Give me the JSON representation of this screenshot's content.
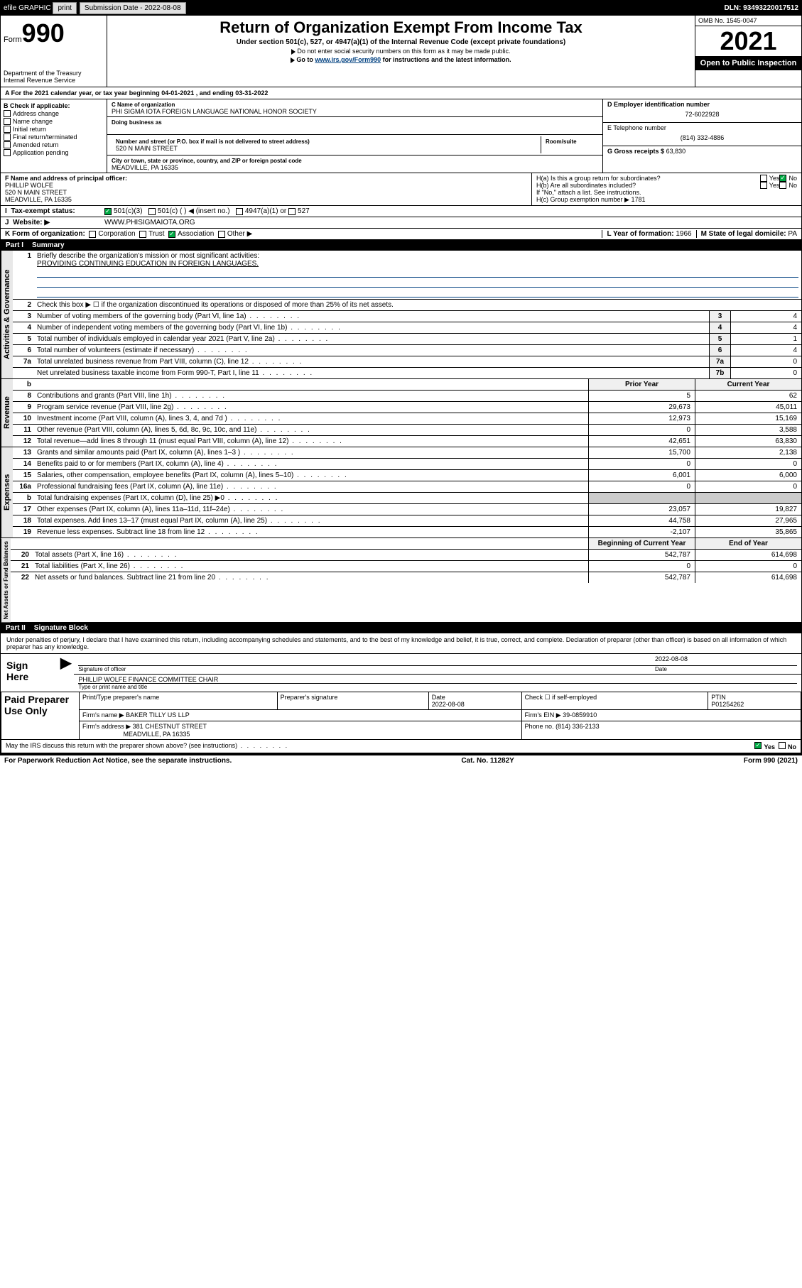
{
  "topbar": {
    "efile": "efile GRAPHIC",
    "print": "print",
    "subdate_label": "Submission Date - 2022-08-08",
    "dln": "DLN: 93493220017512"
  },
  "header": {
    "form_label": "Form",
    "form_num": "990",
    "dept": "Department of the Treasury",
    "irs": "Internal Revenue Service",
    "title": "Return of Organization Exempt From Income Tax",
    "sub": "Under section 501(c), 527, or 4947(a)(1) of the Internal Revenue Code (except private foundations)",
    "inst1": "Do not enter social security numbers on this form as it may be made public.",
    "inst2_pre": "Go to ",
    "inst2_link": "www.irs.gov/Form990",
    "inst2_post": " for instructions and the latest information.",
    "omb": "OMB No. 1545-0047",
    "year": "2021",
    "open": "Open to Public Inspection"
  },
  "period": "For the 2021 calendar year, or tax year beginning 04-01-2021    , and ending 03-31-2022",
  "boxB": {
    "label": "B Check if applicable:",
    "items": [
      "Address change",
      "Name change",
      "Initial return",
      "Final return/terminated",
      "Amended return",
      "Application pending"
    ]
  },
  "boxC": {
    "name_label": "C Name of organization",
    "name": "PHI SIGMA IOTA FOREIGN LANGUAGE NATIONAL HONOR SOCIETY",
    "dba_label": "Doing business as",
    "street_label": "Number and street (or P.O. box if mail is not delivered to street address)",
    "room_label": "Room/suite",
    "street": "520 N MAIN STREET",
    "city_label": "City or town, state or province, country, and ZIP or foreign postal code",
    "city": "MEADVILLE, PA  16335"
  },
  "boxD": {
    "label": "D Employer identification number",
    "val": "72-6022928"
  },
  "boxE": {
    "label": "E Telephone number",
    "val": "(814) 332-4886"
  },
  "boxG": {
    "label": "G Gross receipts $",
    "val": "63,830"
  },
  "boxF": {
    "label": "F Name and address of principal officer:",
    "name": "PHILLIP WOLFE",
    "addr1": "520 N MAIN STREET",
    "addr2": "MEADVILLE, PA  16335"
  },
  "boxH": {
    "a": "H(a)  Is this a group return for subordinates?",
    "b": "H(b)  Are all subordinates included?",
    "b2": "If \"No,\" attach a list. See instructions.",
    "c": "H(c)  Group exemption number ▶   1781",
    "yes": "Yes",
    "no": "No"
  },
  "rowI": {
    "label": "Tax-exempt status:",
    "opts": [
      "501(c)(3)",
      "501(c) (  ) ◀ (insert no.)",
      "4947(a)(1) or",
      "527"
    ]
  },
  "rowJ": {
    "label": "Website: ▶",
    "val": "WWW.PHISIGMAIOTA.ORG"
  },
  "rowK": {
    "label": "K Form of organization:",
    "opts": [
      "Corporation",
      "Trust",
      "Association",
      "Other ▶"
    ],
    "checked": 2
  },
  "rowL": {
    "label": "L Year of formation:",
    "val": "1966"
  },
  "rowM": {
    "label": "M State of legal domicile:",
    "val": "PA"
  },
  "part1": {
    "num": "Part I",
    "title": "Summary"
  },
  "summary": {
    "l1_label": "Briefly describe the organization's mission or most significant activities:",
    "l1_text": "PROVIDING CONTINUING EDUCATION IN FOREIGN LANGUAGES.",
    "l2": "Check this box ▶ ☐  if the organization discontinued its operations or disposed of more than 25% of its net assets."
  },
  "gov_lines": [
    {
      "n": "3",
      "t": "Number of voting members of the governing body (Part VI, line 1a)",
      "box": "3",
      "v": "4"
    },
    {
      "n": "4",
      "t": "Number of independent voting members of the governing body (Part VI, line 1b)",
      "box": "4",
      "v": "4"
    },
    {
      "n": "5",
      "t": "Total number of individuals employed in calendar year 2021 (Part V, line 2a)",
      "box": "5",
      "v": "1"
    },
    {
      "n": "6",
      "t": "Total number of volunteers (estimate if necessary)",
      "box": "6",
      "v": "4"
    },
    {
      "n": "7a",
      "t": "Total unrelated business revenue from Part VIII, column (C), line 12",
      "box": "7a",
      "v": "0"
    },
    {
      "n": "",
      "t": "Net unrelated business taxable income from Form 990-T, Part I, line 11",
      "box": "7b",
      "v": "0"
    }
  ],
  "pycy_header": {
    "py": "Prior Year",
    "cy": "Current Year",
    "b": "b"
  },
  "rev_lines": [
    {
      "n": "8",
      "t": "Contributions and grants (Part VIII, line 1h)",
      "py": "5",
      "cy": "62"
    },
    {
      "n": "9",
      "t": "Program service revenue (Part VIII, line 2g)",
      "py": "29,673",
      "cy": "45,011"
    },
    {
      "n": "10",
      "t": "Investment income (Part VIII, column (A), lines 3, 4, and 7d )",
      "py": "12,973",
      "cy": "15,169"
    },
    {
      "n": "11",
      "t": "Other revenue (Part VIII, column (A), lines 5, 6d, 8c, 9c, 10c, and 11e)",
      "py": "0",
      "cy": "3,588"
    },
    {
      "n": "12",
      "t": "Total revenue—add lines 8 through 11 (must equal Part VIII, column (A), line 12)",
      "py": "42,651",
      "cy": "63,830"
    }
  ],
  "exp_lines": [
    {
      "n": "13",
      "t": "Grants and similar amounts paid (Part IX, column (A), lines 1–3 )",
      "py": "15,700",
      "cy": "2,138"
    },
    {
      "n": "14",
      "t": "Benefits paid to or for members (Part IX, column (A), line 4)",
      "py": "0",
      "cy": "0"
    },
    {
      "n": "15",
      "t": "Salaries, other compensation, employee benefits (Part IX, column (A), lines 5–10)",
      "py": "6,001",
      "cy": "6,000"
    },
    {
      "n": "16a",
      "t": "Professional fundraising fees (Part IX, column (A), line 11e)",
      "py": "0",
      "cy": "0"
    },
    {
      "n": "b",
      "t": "Total fundraising expenses (Part IX, column (D), line 25) ▶0",
      "py": "",
      "cy": "",
      "shaded": true
    },
    {
      "n": "17",
      "t": "Other expenses (Part IX, column (A), lines 11a–11d, 11f–24e)",
      "py": "23,057",
      "cy": "19,827"
    },
    {
      "n": "18",
      "t": "Total expenses. Add lines 13–17 (must equal Part IX, column (A), line 25)",
      "py": "44,758",
      "cy": "27,965"
    },
    {
      "n": "19",
      "t": "Revenue less expenses. Subtract line 18 from line 12",
      "py": "-2,107",
      "cy": "35,865"
    }
  ],
  "na_header": {
    "py": "Beginning of Current Year",
    "cy": "End of Year"
  },
  "na_lines": [
    {
      "n": "20",
      "t": "Total assets (Part X, line 16)",
      "py": "542,787",
      "cy": "614,698"
    },
    {
      "n": "21",
      "t": "Total liabilities (Part X, line 26)",
      "py": "0",
      "cy": "0"
    },
    {
      "n": "22",
      "t": "Net assets or fund balances. Subtract line 21 from line 20",
      "py": "542,787",
      "cy": "614,698"
    }
  ],
  "tabs": {
    "gov": "Activities & Governance",
    "rev": "Revenue",
    "exp": "Expenses",
    "na": "Net Assets or Fund Balances"
  },
  "part2": {
    "num": "Part II",
    "title": "Signature Block"
  },
  "sig": {
    "decl": "Under penalties of perjury, I declare that I have examined this return, including accompanying schedules and statements, and to the best of my knowledge and belief, it is true, correct, and complete. Declaration of preparer (other than officer) is based on all information of which preparer has any knowledge.",
    "sign_here": "Sign Here",
    "sig_officer": "Signature of officer",
    "date": "Date",
    "date_val": "2022-08-08",
    "name_title": "PHILLIP WOLFE  FINANCE COMMITTEE CHAIR",
    "name_title_label": "Type or print name and title"
  },
  "paid": {
    "label": "Paid Preparer Use Only",
    "h1": "Print/Type preparer's name",
    "h2": "Preparer's signature",
    "h3": "Date",
    "h3v": "2022-08-08",
    "h4": "Check ☐ if self-employed",
    "h5": "PTIN",
    "h5v": "P01254262",
    "firm_name_l": "Firm's name   ▶",
    "firm_name": "BAKER TILLY US LLP",
    "firm_ein_l": "Firm's EIN ▶",
    "firm_ein": "39-0859910",
    "firm_addr_l": "Firm's address ▶",
    "firm_addr1": "381 CHESTNUT STREET",
    "firm_addr2": "MEADVILLE, PA  16335",
    "phone_l": "Phone no.",
    "phone": "(814) 336-2133"
  },
  "discuss": "May the IRS discuss this return with the preparer shown above? (see instructions)",
  "footer": {
    "pra": "For Paperwork Reduction Act Notice, see the separate instructions.",
    "cat": "Cat. No. 11282Y",
    "form": "Form 990 (2021)"
  }
}
